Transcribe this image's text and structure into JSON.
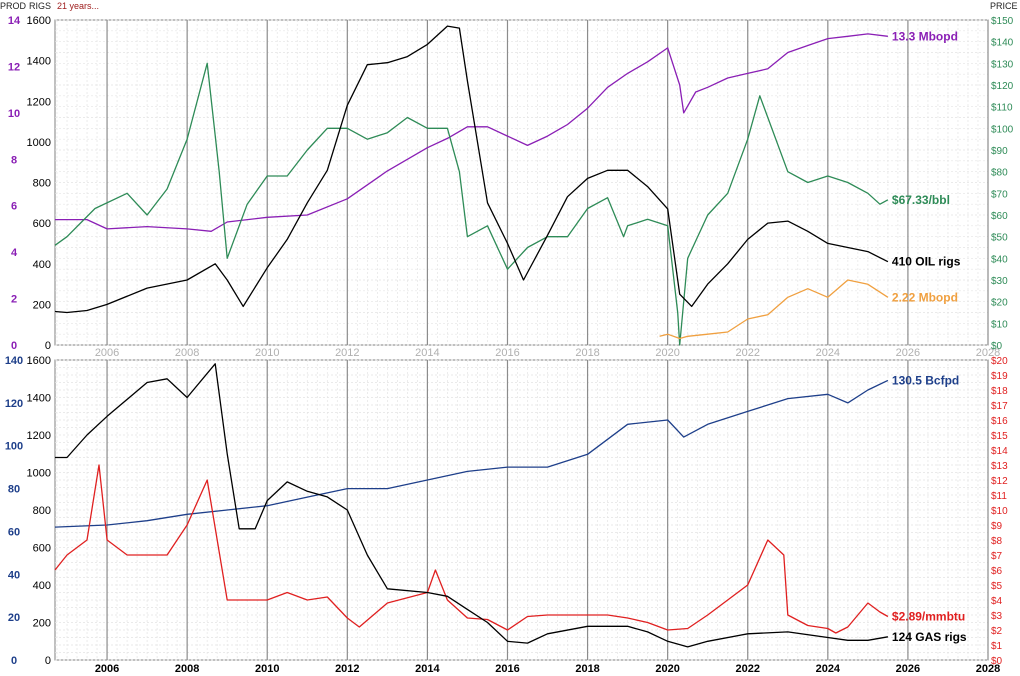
{
  "header": {
    "prod_label": "PROD",
    "rigs_label": "RIGS",
    "subtitle": "21 years...",
    "price_label": "PRICE"
  },
  "colors": {
    "oil_prod": "#8a1fb5",
    "oil_price": "#2e8b57",
    "oil_rigs": "#000000",
    "other_prod": "#f0a040",
    "gas_prod": "#1e3f8a",
    "gas_price": "#e02020",
    "gas_rigs": "#000000"
  },
  "chart_data": [
    {
      "type": "line",
      "x_ticks": [
        "2006",
        "2008",
        "2010",
        "2012",
        "2014",
        "2016",
        "2018",
        "2020",
        "2022",
        "2024",
        "2026",
        "2028"
      ],
      "xlim": [
        2004.7,
        2028.0
      ],
      "prod_axis": {
        "ylim": [
          0,
          14
        ],
        "ticks": [
          "0",
          "2",
          "4",
          "6",
          "8",
          "10",
          "12",
          "14"
        ]
      },
      "rigs_axis": {
        "ylim": [
          0,
          1600
        ],
        "ticks": [
          "0",
          "200",
          "400",
          "600",
          "800",
          "1000",
          "1200",
          "1400",
          "1600"
        ]
      },
      "price_axis": {
        "ylim": [
          0,
          150
        ],
        "ticks": [
          "$0",
          "$10",
          "$20",
          "$30",
          "$40",
          "$50",
          "$60",
          "$70",
          "$80",
          "$90",
          "$100",
          "$110",
          "$120",
          "$130",
          "$140",
          "$150"
        ]
      },
      "series": [
        {
          "key": "oil_prod",
          "axis": "prod",
          "end_label": "13.3 Mbopd",
          "x": [
            2004.7,
            2005.5,
            2006.0,
            2007.0,
            2008.0,
            2008.6,
            2009.0,
            2010.0,
            2011.0,
            2012.0,
            2013.0,
            2014.0,
            2014.5,
            2015.0,
            2015.5,
            2016.0,
            2016.5,
            2017.0,
            2017.5,
            2018.0,
            2018.5,
            2019.0,
            2019.5,
            2020.0,
            2020.3,
            2020.4,
            2020.7,
            2021.0,
            2021.5,
            2022.0,
            2022.5,
            2023.0,
            2023.5,
            2024.0,
            2024.5,
            2025.0,
            2025.5
          ],
          "y": [
            5.4,
            5.4,
            5.0,
            5.1,
            5.0,
            4.9,
            5.3,
            5.5,
            5.6,
            6.3,
            7.5,
            8.5,
            8.9,
            9.4,
            9.4,
            9.0,
            8.6,
            9.0,
            9.5,
            10.2,
            11.1,
            11.7,
            12.2,
            12.8,
            11.2,
            10.0,
            10.9,
            11.1,
            11.5,
            11.7,
            11.9,
            12.6,
            12.9,
            13.2,
            13.3,
            13.4,
            13.3
          ]
        },
        {
          "key": "oil_price",
          "axis": "price",
          "end_label": "$67.33/bbl",
          "x": [
            2004.7,
            2005.0,
            2005.7,
            2006.5,
            2007.0,
            2007.5,
            2008.0,
            2008.5,
            2008.8,
            2009.0,
            2009.5,
            2010.0,
            2010.5,
            2011.0,
            2011.5,
            2012.0,
            2012.5,
            2013.0,
            2013.5,
            2014.0,
            2014.5,
            2014.8,
            2015.0,
            2015.5,
            2016.0,
            2016.5,
            2017.0,
            2017.5,
            2018.0,
            2018.5,
            2018.9,
            2019.0,
            2019.5,
            2020.0,
            2020.25,
            2020.3,
            2020.5,
            2021.0,
            2021.5,
            2022.0,
            2022.3,
            2022.5,
            2023.0,
            2023.5,
            2024.0,
            2024.5,
            2025.0,
            2025.3,
            2025.5
          ],
          "y": [
            46,
            50,
            63,
            70,
            60,
            72,
            95,
            130,
            80,
            40,
            65,
            78,
            78,
            90,
            100,
            100,
            95,
            98,
            105,
            100,
            100,
            80,
            50,
            55,
            35,
            45,
            50,
            50,
            63,
            68,
            50,
            55,
            58,
            55,
            15,
            0,
            40,
            60,
            70,
            95,
            115,
            105,
            80,
            75,
            78,
            75,
            70,
            65,
            67
          ]
        },
        {
          "key": "oil_rigs",
          "axis": "rigs",
          "end_label": "410 OIL rigs",
          "x": [
            2004.7,
            2005.0,
            2005.5,
            2006.0,
            2007.0,
            2008.0,
            2008.7,
            2009.0,
            2009.4,
            2010.0,
            2010.5,
            2011.0,
            2011.5,
            2012.0,
            2012.5,
            2013.0,
            2013.5,
            2014.0,
            2014.5,
            2014.8,
            2015.0,
            2015.5,
            2016.0,
            2016.4,
            2017.0,
            2017.5,
            2018.0,
            2018.5,
            2019.0,
            2019.5,
            2020.0,
            2020.3,
            2020.6,
            2021.0,
            2021.5,
            2022.0,
            2022.5,
            2023.0,
            2023.5,
            2024.0,
            2024.5,
            2025.0,
            2025.5
          ],
          "y": [
            165,
            160,
            170,
            200,
            280,
            320,
            400,
            320,
            190,
            380,
            520,
            700,
            860,
            1180,
            1380,
            1390,
            1420,
            1480,
            1570,
            1560,
            1300,
            700,
            500,
            320,
            540,
            730,
            820,
            860,
            860,
            780,
            670,
            250,
            190,
            300,
            400,
            520,
            600,
            610,
            560,
            500,
            480,
            460,
            410
          ]
        },
        {
          "key": "other_prod",
          "axis": "price",
          "end_label": "2.22 Mbopd",
          "x": [
            2019.8,
            2020.0,
            2020.3,
            2020.5,
            2021.0,
            2021.5,
            2022.0,
            2022.5,
            2023.0,
            2023.5,
            2024.0,
            2024.5,
            2025.0,
            2025.5
          ],
          "y": [
            4,
            5,
            3,
            4,
            5,
            6,
            12,
            14,
            22,
            26,
            22,
            30,
            28,
            22
          ]
        }
      ]
    },
    {
      "type": "line",
      "x_ticks": [
        "2006",
        "2008",
        "2010",
        "2012",
        "2014",
        "2016",
        "2018",
        "2020",
        "2022",
        "2024",
        "2026",
        "2028"
      ],
      "xlim": [
        2004.7,
        2028.0
      ],
      "prod_axis": {
        "ylim": [
          0,
          140
        ],
        "ticks": [
          "0",
          "20",
          "40",
          "60",
          "80",
          "100",
          "120",
          "140"
        ]
      },
      "rigs_axis": {
        "ylim": [
          0,
          1600
        ],
        "ticks": [
          "0",
          "200",
          "400",
          "600",
          "800",
          "1000",
          "1200",
          "1400",
          "1600"
        ]
      },
      "price_axis": {
        "ylim": [
          0,
          20
        ],
        "ticks": [
          "$0",
          "$1",
          "$2",
          "$3",
          "$4",
          "$5",
          "$6",
          "$7",
          "$8",
          "$9",
          "$10",
          "$11",
          "$12",
          "$13",
          "$14",
          "$15",
          "$16",
          "$17",
          "$18",
          "$19",
          "$20"
        ]
      },
      "series": [
        {
          "key": "gas_prod",
          "axis": "prod",
          "end_label": "130.5 Bcfpd",
          "x": [
            2004.7,
            2006.0,
            2007.0,
            2008.0,
            2009.0,
            2010.0,
            2011.0,
            2012.0,
            2013.0,
            2014.0,
            2015.0,
            2016.0,
            2017.0,
            2018.0,
            2019.0,
            2020.0,
            2020.4,
            2021.0,
            2022.0,
            2023.0,
            2024.0,
            2024.5,
            2025.0,
            2025.5
          ],
          "y": [
            62,
            63,
            65,
            68,
            70,
            72,
            76,
            80,
            80,
            84,
            88,
            90,
            90,
            96,
            110,
            112,
            104,
            110,
            116,
            122,
            124,
            120,
            126,
            130.5
          ]
        },
        {
          "key": "gas_price",
          "axis": "price",
          "end_label": "$2.89/mmbtu",
          "x": [
            2004.7,
            2005.0,
            2005.5,
            2005.8,
            2006.0,
            2006.5,
            2007.0,
            2007.5,
            2008.0,
            2008.5,
            2009.0,
            2009.5,
            2010.0,
            2010.5,
            2011.0,
            2011.5,
            2012.0,
            2012.3,
            2013.0,
            2014.0,
            2014.2,
            2014.5,
            2015.0,
            2015.5,
            2016.0,
            2016.5,
            2017.0,
            2017.5,
            2018.0,
            2018.5,
            2019.0,
            2019.5,
            2020.0,
            2020.5,
            2021.0,
            2021.5,
            2022.0,
            2022.5,
            2022.9,
            2023.0,
            2023.5,
            2024.0,
            2024.2,
            2024.5,
            2025.0,
            2025.3,
            2025.5
          ],
          "y": [
            6,
            7,
            8,
            13,
            8,
            7,
            7,
            7,
            9,
            12,
            4,
            4,
            4,
            4.5,
            4,
            4.2,
            2.8,
            2.2,
            3.8,
            4.5,
            6,
            4,
            2.8,
            2.7,
            2,
            2.9,
            3,
            3,
            3,
            3,
            2.8,
            2.5,
            2,
            2.1,
            3,
            4,
            5,
            8,
            7,
            3,
            2.3,
            2.1,
            1.8,
            2.2,
            3.8,
            3.2,
            2.9
          ]
        },
        {
          "key": "gas_rigs",
          "axis": "rigs",
          "end_label": "124 GAS rigs",
          "x": [
            2004.7,
            2005.0,
            2005.5,
            2006.0,
            2007.0,
            2007.5,
            2008.0,
            2008.7,
            2009.0,
            2009.3,
            2009.7,
            2010.0,
            2010.5,
            2011.0,
            2011.5,
            2012.0,
            2012.5,
            2013.0,
            2014.0,
            2014.5,
            2015.0,
            2015.5,
            2016.0,
            2016.5,
            2017.0,
            2018.0,
            2019.0,
            2019.5,
            2020.0,
            2020.5,
            2021.0,
            2022.0,
            2023.0,
            2024.0,
            2024.5,
            2025.0,
            2025.5
          ],
          "y": [
            1080,
            1080,
            1200,
            1300,
            1480,
            1500,
            1400,
            1580,
            1100,
            700,
            700,
            850,
            950,
            900,
            870,
            800,
            560,
            380,
            360,
            340,
            270,
            200,
            100,
            90,
            140,
            180,
            180,
            150,
            100,
            70,
            100,
            140,
            150,
            120,
            105,
            105,
            124
          ]
        }
      ]
    }
  ]
}
